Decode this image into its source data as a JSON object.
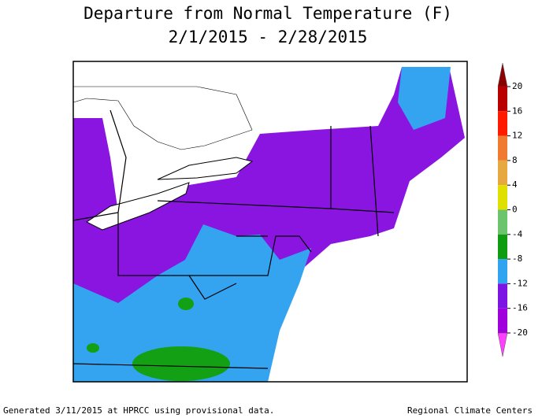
{
  "header": {
    "title": "Departure from Normal Temperature (F)",
    "subtitle": "2/1/2015 - 2/28/2015"
  },
  "legend": {
    "ticks": [
      20,
      16,
      12,
      8,
      4,
      0,
      -4,
      -8,
      -12,
      -16,
      -20
    ],
    "colors": [
      "#8c0000",
      "#b80000",
      "#ff1a00",
      "#f07a30",
      "#e8a840",
      "#e0e000",
      "#6cc46c",
      "#109c10",
      "#30a4f0",
      "#7c14e4",
      "#a000dc",
      "#ff40ff"
    ]
  },
  "footer": {
    "left": "Generated 3/11/2015 at HPRCC using provisional data.",
    "right": "Regional Climate Centers"
  }
}
